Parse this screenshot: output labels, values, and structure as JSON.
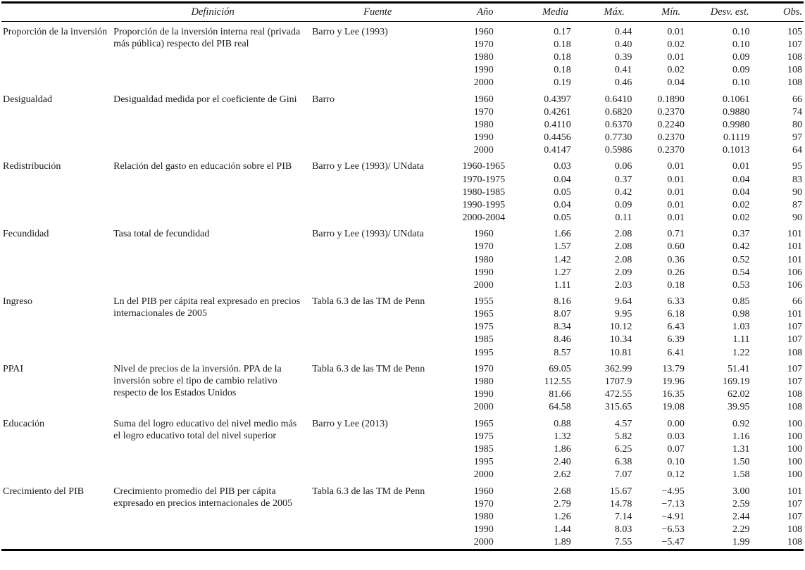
{
  "table": {
    "columns": [
      {
        "key": "variable",
        "label": ""
      },
      {
        "key": "definition",
        "label": "Definición"
      },
      {
        "key": "source",
        "label": "Fuente"
      },
      {
        "key": "year",
        "label": "Año"
      },
      {
        "key": "media",
        "label": "Media"
      },
      {
        "key": "max",
        "label": "Máx."
      },
      {
        "key": "min",
        "label": "Mín."
      },
      {
        "key": "sd",
        "label": "Desv. est."
      },
      {
        "key": "obs",
        "label": "Obs."
      }
    ],
    "groups": [
      {
        "name": "Proporción de la inversión",
        "definition": "Proporción de la inversión interna real (privada más pública) respecto del PIB real",
        "source": "Barro y Lee (1993)",
        "rows": [
          {
            "year": "1960",
            "media": "0.17",
            "max": "0.44",
            "min": "0.01",
            "sd": "0.10",
            "obs": "105"
          },
          {
            "year": "1970",
            "media": "0.18",
            "max": "0.40",
            "min": "0.02",
            "sd": "0.10",
            "obs": "107"
          },
          {
            "year": "1980",
            "media": "0.18",
            "max": "0.39",
            "min": "0.01",
            "sd": "0.09",
            "obs": "108"
          },
          {
            "year": "1990",
            "media": "0.18",
            "max": "0.41",
            "min": "0.02",
            "sd": "0.09",
            "obs": "108"
          },
          {
            "year": "2000",
            "media": "0.19",
            "max": "0.46",
            "min": "0.04",
            "sd": "0.10",
            "obs": "108"
          }
        ]
      },
      {
        "name": "Desigualdad",
        "definition": "Desigualdad medida por el coeficiente de Gini",
        "source": "Barro",
        "rows": [
          {
            "year": "1960",
            "media": "0.4397",
            "max": "0.6410",
            "min": "0.1890",
            "sd": "0.1061",
            "obs": "66"
          },
          {
            "year": "1970",
            "media": "0.4261",
            "max": "0.6820",
            "min": "0.2370",
            "sd": "0.9880",
            "obs": "74"
          },
          {
            "year": "1980",
            "media": "0.4110",
            "max": "0.6370",
            "min": "0.2240",
            "sd": "0.9980",
            "obs": "80"
          },
          {
            "year": "1990",
            "media": "0.4456",
            "max": "0.7730",
            "min": "0.2370",
            "sd": "0.1119",
            "obs": "97"
          },
          {
            "year": "2000",
            "media": "0.4147",
            "max": "0.5986",
            "min": "0.2370",
            "sd": "0.1013",
            "obs": "64"
          }
        ]
      },
      {
        "name": "Redistribución",
        "definition": "Relación del gasto en educación sobre el PIB",
        "source": "Barro y Lee (1993)/ UNdata",
        "rows": [
          {
            "year": "1960-1965",
            "media": "0.03",
            "max": "0.06",
            "min": "0.01",
            "sd": "0.01",
            "obs": "95"
          },
          {
            "year": "1970-1975",
            "media": "0.04",
            "max": "0.37",
            "min": "0.01",
            "sd": "0.04",
            "obs": "83"
          },
          {
            "year": "1980-1985",
            "media": "0.05",
            "max": "0.42",
            "min": "0.01",
            "sd": "0.04",
            "obs": "90"
          },
          {
            "year": "1990-1995",
            "media": "0.04",
            "max": "0.09",
            "min": "0.01",
            "sd": "0.02",
            "obs": "87"
          },
          {
            "year": "2000-2004",
            "media": "0.05",
            "max": "0.11",
            "min": "0.01",
            "sd": "0.02",
            "obs": "90"
          }
        ]
      },
      {
        "name": "Fecundidad",
        "definition": "Tasa total de fecundidad",
        "source": "Barro y Lee (1993)/ UNdata",
        "rows": [
          {
            "year": "1960",
            "media": "1.66",
            "max": "2.08",
            "min": "0.71",
            "sd": "0.37",
            "obs": "101"
          },
          {
            "year": "1970",
            "media": "1.57",
            "max": "2.08",
            "min": "0.60",
            "sd": "0.42",
            "obs": "101"
          },
          {
            "year": "1980",
            "media": "1.42",
            "max": "2.08",
            "min": "0.36",
            "sd": "0.52",
            "obs": "101"
          },
          {
            "year": "1990",
            "media": "1.27",
            "max": "2.09",
            "min": "0.26",
            "sd": "0.54",
            "obs": "106"
          },
          {
            "year": "2000",
            "media": "1.11",
            "max": "2.03",
            "min": "0.18",
            "sd": "0.53",
            "obs": "106"
          }
        ]
      },
      {
        "name": "Ingreso",
        "definition": "Ln del PIB per cápita real expresado en precios internacionales de 2005",
        "source": "Tabla 6.3 de las TM de Penn",
        "rows": [
          {
            "year": "1955",
            "media": "8.16",
            "max": "9.64",
            "min": "6.33",
            "sd": "0.85",
            "obs": "66"
          },
          {
            "year": "1965",
            "media": "8.07",
            "max": "9.95",
            "min": "6.18",
            "sd": "0.98",
            "obs": "101"
          },
          {
            "year": "1975",
            "media": "8.34",
            "max": "10.12",
            "min": "6.43",
            "sd": "1.03",
            "obs": "107"
          },
          {
            "year": "1985",
            "media": "8.46",
            "max": "10.34",
            "min": "6.39",
            "sd": "1.11",
            "obs": "107"
          },
          {
            "year": "1995",
            "media": "8.57",
            "max": "10.81",
            "min": "6.41",
            "sd": "1.22",
            "obs": "108"
          }
        ]
      },
      {
        "name": "PPAI",
        "definition": "Nivel de precios de la inversión. PPA de la inversión sobre el tipo de cambio relativo respecto de los Estados Unidos",
        "source": "Tabla 6.3 de las TM de Penn",
        "rows": [
          {
            "year": "1970",
            "media": "69.05",
            "max": "362.99",
            "min": "13.79",
            "sd": "51.41",
            "obs": "107"
          },
          {
            "year": "1980",
            "media": "112.55",
            "max": "1707.9",
            "min": "19.96",
            "sd": "169.19",
            "obs": "107"
          },
          {
            "year": "1990",
            "media": "81.66",
            "max": "472.55",
            "min": "16.35",
            "sd": "62.02",
            "obs": "108"
          },
          {
            "year": "2000",
            "media": "64.58",
            "max": "315.65",
            "min": "19.08",
            "sd": "39.95",
            "obs": "108"
          }
        ]
      },
      {
        "name": "Educación",
        "definition": "Suma del logro educativo del nivel medio más el logro educativo total del nivel superior",
        "source": "Barro y Lee (2013)",
        "rows": [
          {
            "year": "1965",
            "media": "0.88",
            "max": "4.57",
            "min": "0.00",
            "sd": "0.92",
            "obs": "100"
          },
          {
            "year": "1975",
            "media": "1.32",
            "max": "5.82",
            "min": "0.03",
            "sd": "1.16",
            "obs": "100"
          },
          {
            "year": "1985",
            "media": "1.86",
            "max": "6.25",
            "min": "0.07",
            "sd": "1.31",
            "obs": "100"
          },
          {
            "year": "1995",
            "media": "2.40",
            "max": "6.38",
            "min": "0.10",
            "sd": "1.50",
            "obs": "100"
          },
          {
            "year": "2000",
            "media": "2.62",
            "max": "7.07",
            "min": "0.12",
            "sd": "1.58",
            "obs": "100"
          }
        ]
      },
      {
        "name": "Crecimiento del PIB",
        "definition": "Crecimiento promedio del PIB per cápita expresado en precios internacionales de 2005",
        "source": "Tabla 6.3 de las TM de Penn",
        "rows": [
          {
            "year": "1960",
            "media": "2.68",
            "max": "15.67",
            "min": "−4.95",
            "sd": "3.00",
            "obs": "101"
          },
          {
            "year": "1970",
            "media": "2.79",
            "max": "14.78",
            "min": "−7.13",
            "sd": "2.59",
            "obs": "107"
          },
          {
            "year": "1980",
            "media": "1.26",
            "max": "7.14",
            "min": "−4.91",
            "sd": "2.44",
            "obs": "107"
          },
          {
            "year": "1990",
            "media": "1.44",
            "max": "8.03",
            "min": "−6.53",
            "sd": "2.29",
            "obs": "108"
          },
          {
            "year": "2000",
            "media": "1.89",
            "max": "7.55",
            "min": "−5.47",
            "sd": "1.99",
            "obs": "108"
          }
        ]
      }
    ]
  }
}
